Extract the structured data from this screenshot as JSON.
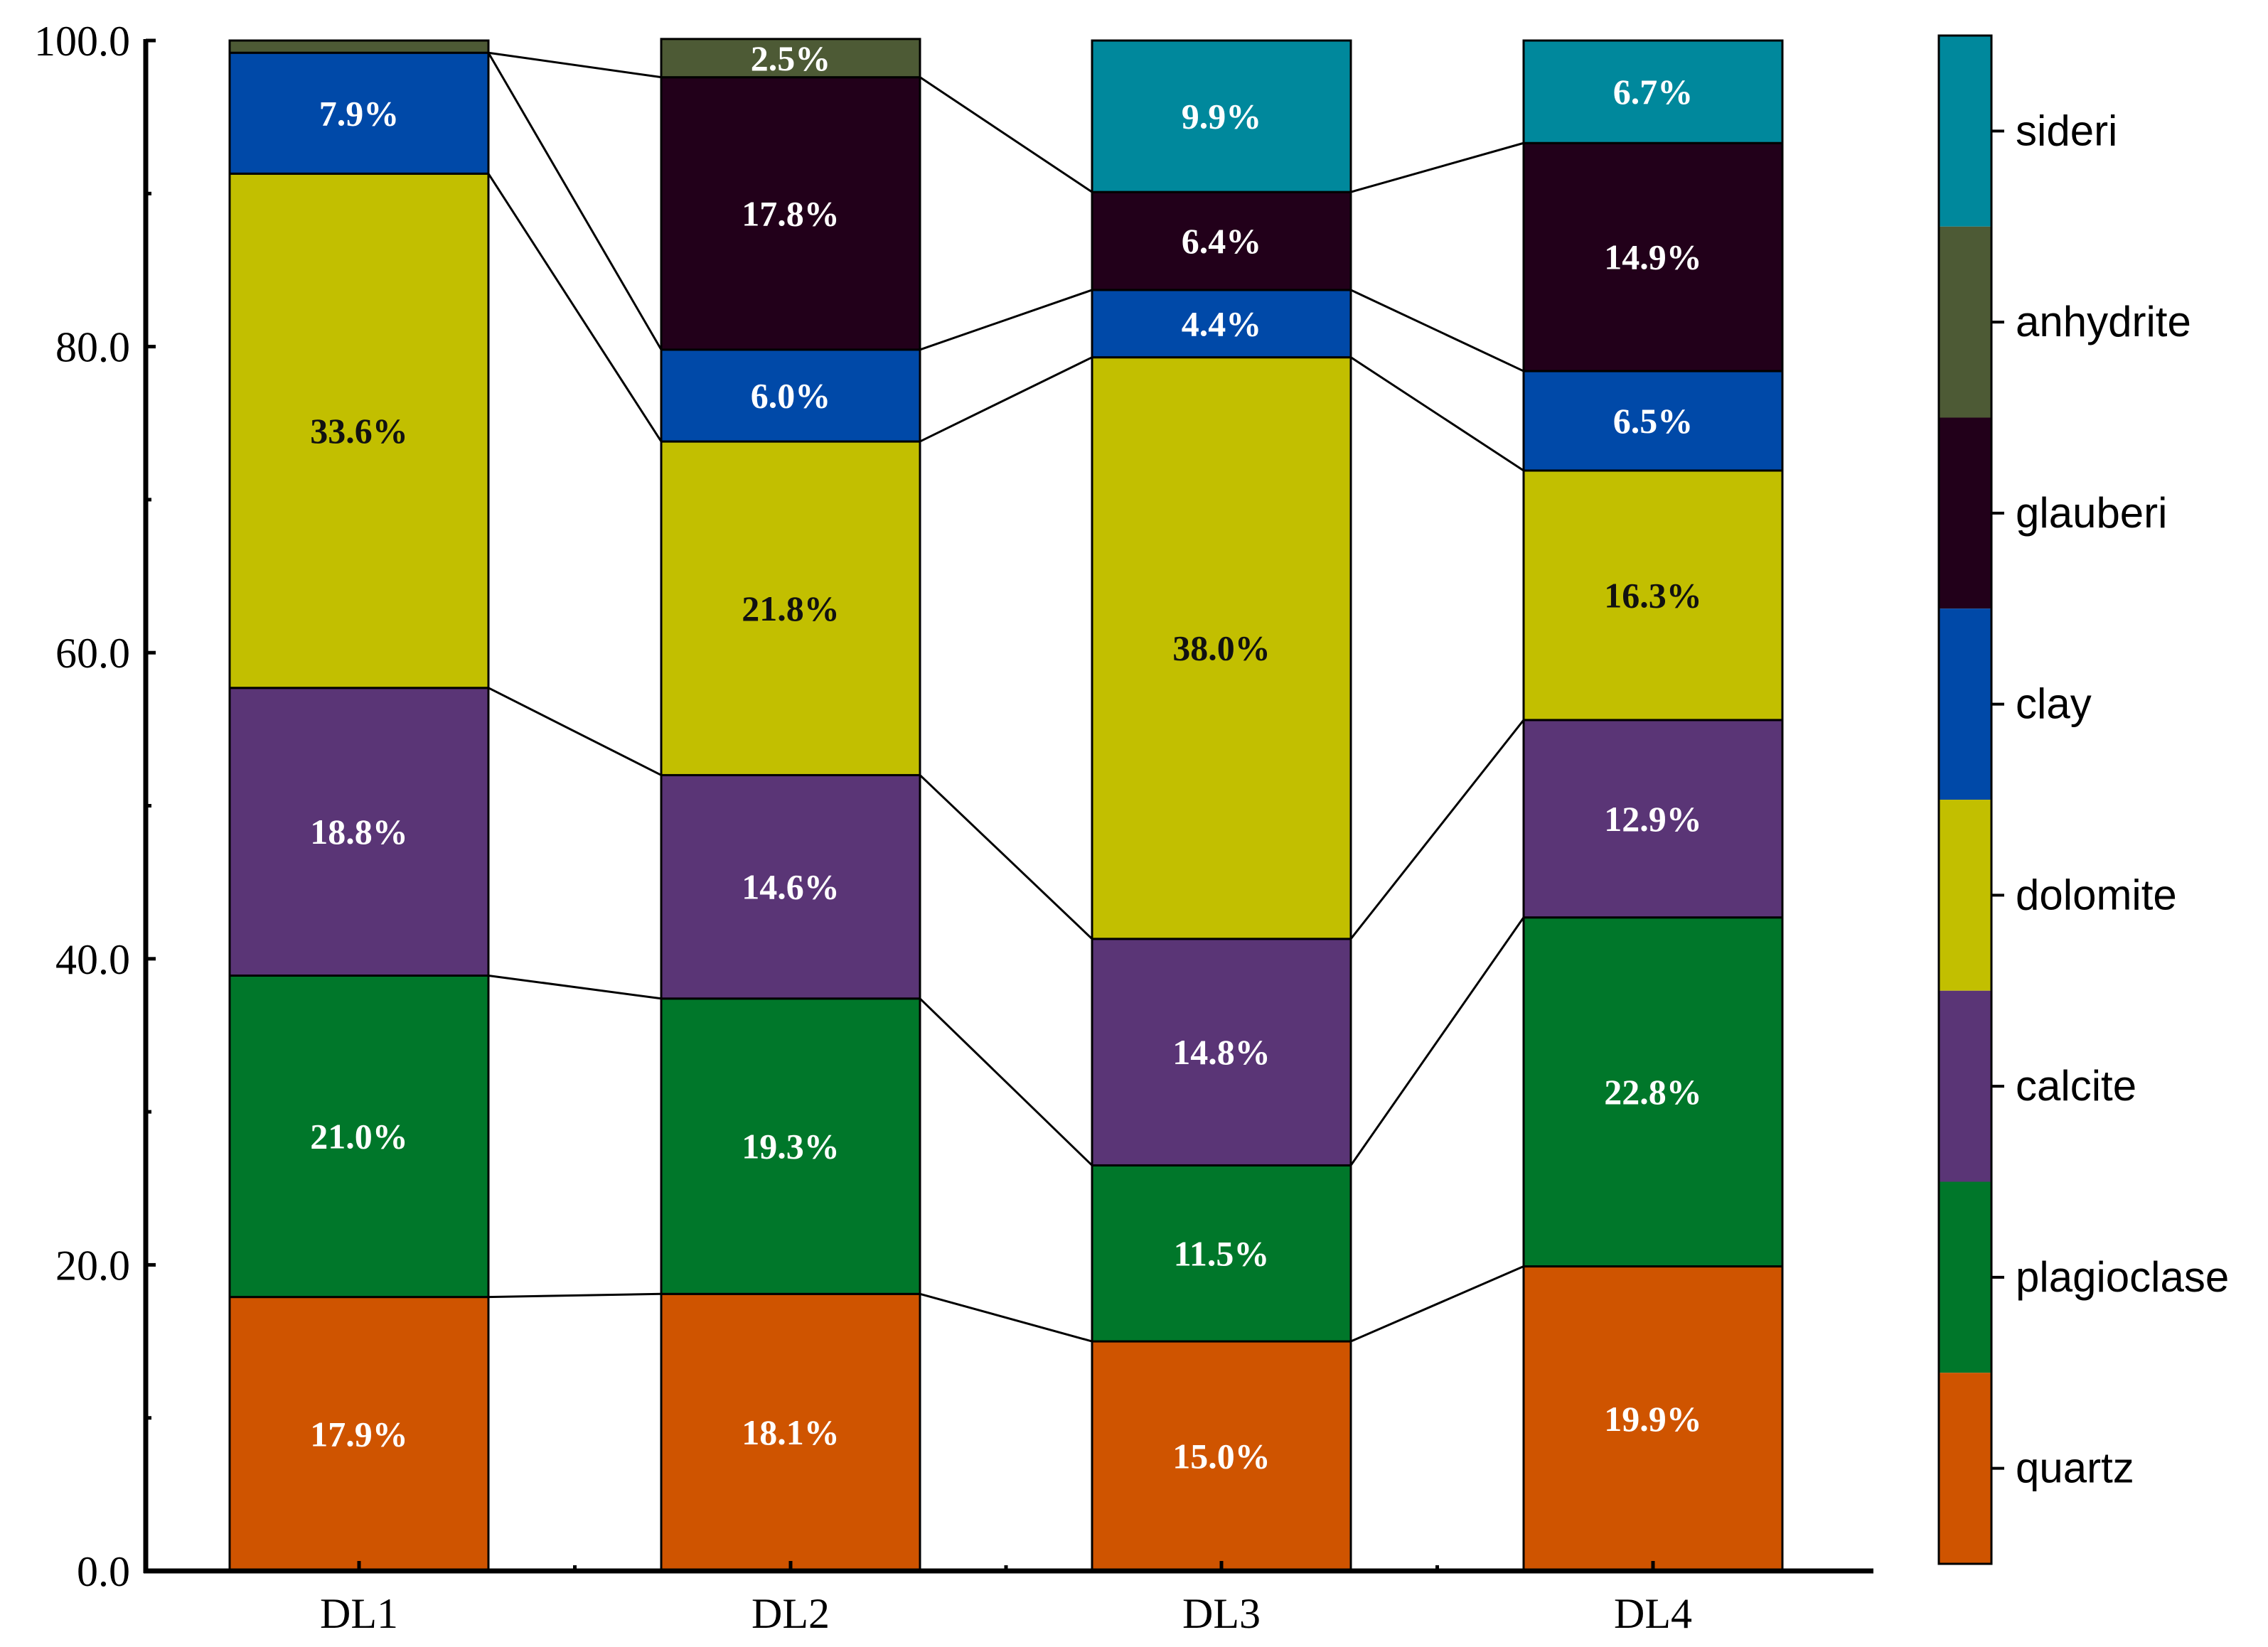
{
  "chart_data": {
    "type": "bar",
    "stacked": true,
    "title": "",
    "xlabel": "",
    "ylabel": "",
    "ylim": [
      0,
      100
    ],
    "yticks": [
      "0.0",
      "20.0",
      "40.0",
      "60.0",
      "80.0",
      "100.0"
    ],
    "categories": [
      "DL1",
      "DL2",
      "DL3",
      "DL4"
    ],
    "series": [
      {
        "name": "quartz",
        "color": "#CF5400",
        "label_color": "#ffffff",
        "values": [
          17.9,
          18.1,
          15.0,
          19.9
        ],
        "labels": [
          "17.9%",
          "18.1%",
          "15.0%",
          "19.9%"
        ]
      },
      {
        "name": "plagioclase",
        "color": "#00772A",
        "label_color": "#ffffff",
        "values": [
          21.0,
          19.3,
          11.5,
          22.8
        ],
        "labels": [
          "21.0%",
          "19.3%",
          "11.5%",
          "22.8%"
        ]
      },
      {
        "name": "calcite",
        "color": "#5A3576",
        "label_color": "#ffffff",
        "values": [
          18.8,
          14.6,
          14.8,
          12.9
        ],
        "labels": [
          "18.8%",
          "14.6%",
          "14.8%",
          "12.9%"
        ]
      },
      {
        "name": "dolomite",
        "color": "#C2BF00",
        "label_color": "#111111",
        "values": [
          33.6,
          21.8,
          38.0,
          16.3
        ],
        "labels": [
          "33.6%",
          "21.8%",
          "38.0%",
          "16.3%"
        ]
      },
      {
        "name": "clay",
        "color": "#0049A8",
        "label_color": "#ffffff",
        "values": [
          7.9,
          6.0,
          4.4,
          6.5
        ],
        "labels": [
          "7.9%",
          "6.0%",
          "4.4%",
          "6.5%"
        ]
      },
      {
        "name": "glauberi",
        "color": "#22001A",
        "label_color": "#ffffff",
        "values": [
          0,
          17.8,
          6.4,
          14.9
        ],
        "labels": [
          "",
          "17.8%",
          "6.4%",
          "14.9%"
        ]
      },
      {
        "name": "anhydrite",
        "color": "#4D5A35",
        "label_color": "#ffffff",
        "values": [
          0.8,
          2.5,
          0,
          0
        ],
        "labels": [
          "",
          "2.5%",
          "",
          ""
        ]
      },
      {
        "name": "sideri",
        "color": "#00889C",
        "label_color": "#ffffff",
        "values": [
          0,
          0,
          9.9,
          6.7
        ],
        "labels": [
          "",
          "",
          "9.9%",
          "6.7%"
        ]
      }
    ],
    "legend": {
      "position": "right",
      "order": [
        "sideri",
        "anhydrite",
        "glauberi",
        "clay",
        "dolomite",
        "calcite",
        "plagioclase",
        "quartz"
      ]
    },
    "connector_lines": true,
    "grid": false
  }
}
